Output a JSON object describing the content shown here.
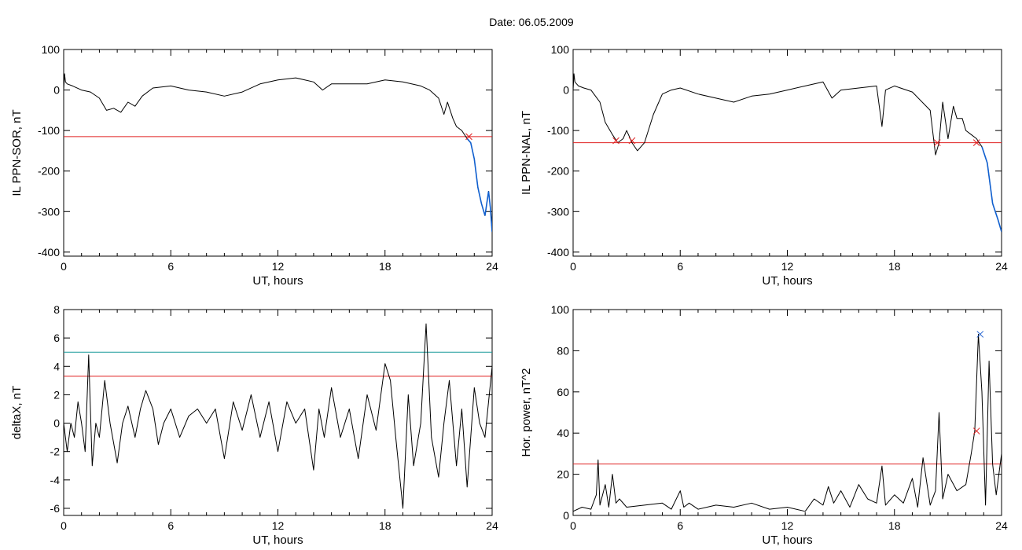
{
  "figure": {
    "title": "Date:  06.05.2009"
  },
  "colors": {
    "axis": "#000000",
    "series": "#000000",
    "threshold_red": "#e02020",
    "threshold_teal": "#1a9a9a",
    "event_blue": "#1060d0",
    "event_green": "#20a020",
    "marker_red": "#d03030",
    "marker_blue": "#2060d0"
  },
  "chart_data": [
    {
      "id": "il-ppn-sor",
      "type": "line",
      "xlabel": "UT, hours",
      "ylabel": "IL PPN-SOR, nT",
      "xlim": [
        0,
        24
      ],
      "ylim": [
        -410,
        100
      ],
      "xticks": [
        0,
        6,
        12,
        18,
        24
      ],
      "yticks": [
        100,
        0,
        -100,
        -200,
        -300,
        -400
      ],
      "threshold_lines": [
        {
          "y": -115,
          "color": "red"
        }
      ],
      "series": [
        {
          "x": [
            0,
            0.05,
            0.1,
            0.2,
            0.5,
            1.0,
            1.5,
            2.0,
            2.4,
            2.8,
            3.2,
            3.6,
            4.0,
            4.4,
            5.0,
            6.0,
            7.0,
            8.0,
            9.0,
            10.0,
            11.0,
            12.0,
            13.0,
            14.0,
            14.5,
            15.0,
            16.0,
            17.0,
            18.0,
            19.0,
            20.0,
            20.5,
            21.0,
            21.3,
            21.5,
            21.8,
            22.0,
            22.3,
            22.6,
            22.8,
            23.0,
            23.2,
            23.4,
            23.6,
            23.7,
            23.8,
            23.9,
            24.0
          ],
          "y": [
            0,
            40,
            20,
            15,
            10,
            0,
            -5,
            -20,
            -50,
            -45,
            -55,
            -30,
            -40,
            -15,
            5,
            10,
            0,
            -5,
            -15,
            -5,
            15,
            25,
            30,
            20,
            0,
            15,
            15,
            15,
            25,
            20,
            10,
            0,
            -20,
            -60,
            -30,
            -70,
            -90,
            -100,
            -120,
            -130,
            -170,
            -240,
            -280,
            -310,
            -280,
            -250,
            -290,
            -350
          ]
        }
      ],
      "event_markers": [
        {
          "x": 22.7,
          "y": -115,
          "color": "red"
        }
      ]
    },
    {
      "id": "il-ppn-nal",
      "type": "line",
      "xlabel": "UT, hours",
      "ylabel": "IL PPN-NAL, nT",
      "xlim": [
        0,
        24
      ],
      "ylim": [
        -410,
        100
      ],
      "xticks": [
        0,
        6,
        12,
        18,
        24
      ],
      "yticks": [
        100,
        0,
        -100,
        -200,
        -300,
        -400
      ],
      "threshold_lines": [
        {
          "y": -130,
          "color": "red"
        }
      ],
      "series": [
        {
          "x": [
            0,
            0.05,
            0.1,
            0.3,
            0.6,
            1.0,
            1.5,
            1.8,
            2.2,
            2.5,
            2.8,
            3.0,
            3.3,
            3.6,
            4.0,
            4.5,
            5.0,
            5.5,
            6.0,
            7.0,
            8.0,
            9.0,
            10.0,
            11.0,
            12.0,
            13.0,
            14.0,
            14.5,
            15.0,
            16.0,
            17.0,
            17.3,
            17.5,
            18.0,
            19.0,
            20.0,
            20.3,
            20.5,
            20.7,
            21.0,
            21.3,
            21.5,
            21.8,
            22.0,
            22.3,
            22.6,
            22.9,
            23.2,
            23.5,
            23.8,
            24.0
          ],
          "y": [
            0,
            40,
            20,
            10,
            5,
            0,
            -30,
            -80,
            -110,
            -130,
            -120,
            -100,
            -130,
            -150,
            -130,
            -60,
            -10,
            0,
            5,
            -10,
            -20,
            -30,
            -15,
            -10,
            0,
            10,
            20,
            -20,
            0,
            5,
            10,
            -90,
            0,
            10,
            -5,
            -50,
            -160,
            -130,
            -30,
            -120,
            -40,
            -70,
            -70,
            -100,
            -110,
            -120,
            -140,
            -180,
            -280,
            -320,
            -350
          ]
        }
      ],
      "event_markers": [
        {
          "x": 2.4,
          "y": -125,
          "color": "red"
        },
        {
          "x": 3.3,
          "y": -125,
          "color": "red"
        },
        {
          "x": 20.4,
          "y": -130,
          "color": "red"
        },
        {
          "x": 22.6,
          "y": -130,
          "color": "red"
        }
      ]
    },
    {
      "id": "deltax",
      "type": "line",
      "xlabel": "UT, hours",
      "ylabel": "deltaX, nT",
      "xlim": [
        0,
        24
      ],
      "ylim": [
        -6.5,
        8
      ],
      "xticks": [
        0,
        6,
        12,
        18,
        24
      ],
      "yticks": [
        8,
        6,
        4,
        2,
        0,
        -2,
        -4,
        -6
      ],
      "threshold_lines": [
        {
          "y": 5.0,
          "color": "teal"
        },
        {
          "y": 3.3,
          "color": "red"
        }
      ],
      "series": [
        {
          "x": [
            0,
            0.2,
            0.4,
            0.6,
            0.8,
            1.0,
            1.2,
            1.4,
            1.6,
            1.8,
            2.0,
            2.3,
            2.6,
            3.0,
            3.3,
            3.6,
            4.0,
            4.3,
            4.6,
            5.0,
            5.3,
            5.6,
            6.0,
            6.5,
            7.0,
            7.5,
            8.0,
            8.5,
            9.0,
            9.5,
            10.0,
            10.5,
            11.0,
            11.5,
            12.0,
            12.5,
            13.0,
            13.5,
            14.0,
            14.3,
            14.6,
            15.0,
            15.5,
            16.0,
            16.5,
            17.0,
            17.5,
            18.0,
            18.3,
            18.6,
            19.0,
            19.3,
            19.6,
            20.0,
            20.3,
            20.6,
            21.0,
            21.3,
            21.6,
            22.0,
            22.3,
            22.6,
            23.0,
            23.3,
            23.6,
            24.0
          ],
          "y": [
            0,
            -2,
            0,
            -1,
            1.5,
            0,
            -2,
            4.8,
            -3,
            0,
            -1,
            3,
            0,
            -2.8,
            0,
            1.2,
            -1,
            1,
            2.3,
            1,
            -1.5,
            0,
            1,
            -1,
            0.5,
            1,
            0,
            1,
            -2.5,
            1.5,
            -0.5,
            2,
            -1,
            1.5,
            -2,
            1.5,
            0,
            1,
            -3.3,
            1,
            -1,
            2.5,
            -1,
            1,
            -2.5,
            2,
            -0.5,
            4.2,
            3,
            -1,
            -6,
            2,
            -3,
            0,
            7,
            -1,
            -3.8,
            0,
            3,
            -3,
            1,
            -4.5,
            2.5,
            0,
            -1,
            4
          ]
        }
      ]
    },
    {
      "id": "hor-power",
      "type": "line",
      "xlabel": "UT, hours",
      "ylabel": "Hor. power, nT^2",
      "xlim": [
        0,
        24
      ],
      "ylim": [
        0,
        100
      ],
      "xticks": [
        0,
        6,
        12,
        18,
        24
      ],
      "yticks": [
        100,
        80,
        60,
        40,
        20,
        0
      ],
      "threshold_lines": [
        {
          "y": 25,
          "color": "red"
        }
      ],
      "series": [
        {
          "x": [
            0,
            0.5,
            1.0,
            1.3,
            1.4,
            1.5,
            1.8,
            2.0,
            2.2,
            2.4,
            2.6,
            3.0,
            4.0,
            5.0,
            5.5,
            6.0,
            6.2,
            6.5,
            7.0,
            8.0,
            9.0,
            10.0,
            11.0,
            12.0,
            13.0,
            13.5,
            14.0,
            14.3,
            14.6,
            15.0,
            15.5,
            16.0,
            16.5,
            17.0,
            17.3,
            17.5,
            18.0,
            18.5,
            19.0,
            19.3,
            19.6,
            20.0,
            20.3,
            20.5,
            20.7,
            21.0,
            21.5,
            22.0,
            22.3,
            22.5,
            22.7,
            22.9,
            23.1,
            23.3,
            23.5,
            23.7,
            24.0
          ],
          "y": [
            2,
            4,
            3,
            10,
            27,
            5,
            15,
            4,
            20,
            6,
            8,
            4,
            5,
            6,
            3,
            12,
            4,
            6,
            3,
            5,
            4,
            6,
            3,
            4,
            2,
            8,
            5,
            14,
            6,
            12,
            4,
            15,
            8,
            6,
            24,
            5,
            10,
            6,
            18,
            4,
            28,
            5,
            12,
            50,
            8,
            20,
            12,
            15,
            30,
            41,
            88,
            60,
            5,
            75,
            25,
            10,
            30
          ]
        }
      ],
      "event_markers": [
        {
          "x": 22.6,
          "y": 41,
          "color": "red"
        },
        {
          "x": 22.8,
          "y": 88,
          "color": "blue"
        }
      ]
    }
  ]
}
